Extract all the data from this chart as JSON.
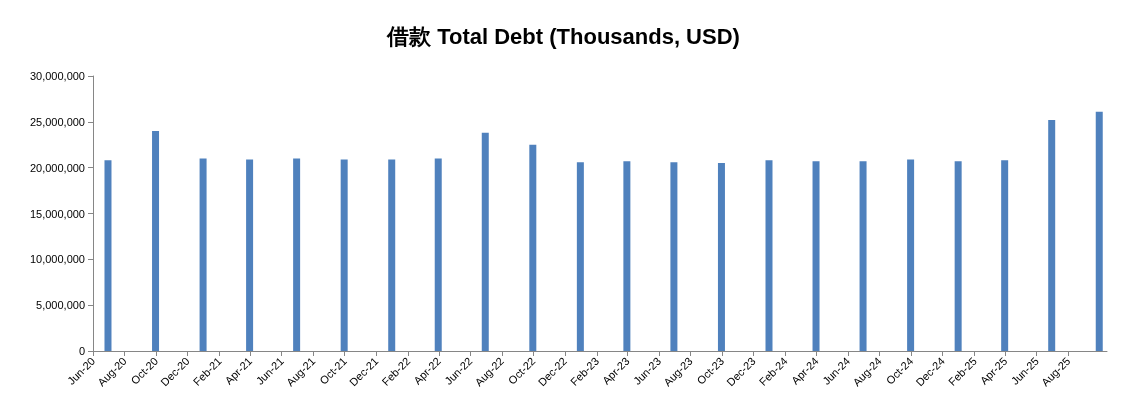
{
  "chart_data": {
    "type": "bar",
    "title": "借款 Total Debt (Thousands, USD)",
    "x": [
      "2020-06-30",
      "2020-09-30",
      "2020-12-31",
      "2021-03-31",
      "2021-06-30",
      "2021-09-30",
      "2021-12-31",
      "2022-03-31",
      "2022-06-30",
      "2022-09-30",
      "2022-12-31",
      "2023-03-31",
      "2023-06-30",
      "2023-09-30",
      "2023-12-31",
      "2024-03-31",
      "2024-06-30",
      "2024-09-30",
      "2024-12-31",
      "2025-03-31",
      "2025-06-30",
      "2025-09-30"
    ],
    "values": [
      20800000,
      24000000,
      21000000,
      20900000,
      21000000,
      20900000,
      20900000,
      21000000,
      23800000,
      22500000,
      20600000,
      20700000,
      20600000,
      20500000,
      20800000,
      20700000,
      20700000,
      20900000,
      20700000,
      20800000,
      25200000,
      26100000
    ],
    "color": "#4f81bd",
    "xlim": [
      "2020-06",
      "2025-10-15"
    ],
    "xticks": [
      {
        "value": "2020-06",
        "label": "Jun-20"
      },
      {
        "value": "2020-08",
        "label": "Aug-20"
      },
      {
        "value": "2020-10",
        "label": "Oct-20"
      },
      {
        "value": "2020-12",
        "label": "Dec-20"
      },
      {
        "value": "2021-02",
        "label": "Feb-21"
      },
      {
        "value": "2021-04",
        "label": "Apr-21"
      },
      {
        "value": "2021-06",
        "label": "Jun-21"
      },
      {
        "value": "2021-08",
        "label": "Aug-21"
      },
      {
        "value": "2021-10",
        "label": "Oct-21"
      },
      {
        "value": "2021-12",
        "label": "Dec-21"
      },
      {
        "value": "2022-02",
        "label": "Feb-22"
      },
      {
        "value": "2022-04",
        "label": "Apr-22"
      },
      {
        "value": "2022-06",
        "label": "Jun-22"
      },
      {
        "value": "2022-08",
        "label": "Aug-22"
      },
      {
        "value": "2022-10",
        "label": "Oct-22"
      },
      {
        "value": "2022-12",
        "label": "Dec-22"
      },
      {
        "value": "2023-02",
        "label": "Feb-23"
      },
      {
        "value": "2023-04",
        "label": "Apr-23"
      },
      {
        "value": "2023-06",
        "label": "Jun-23"
      },
      {
        "value": "2023-08",
        "label": "Aug-23"
      },
      {
        "value": "2023-10",
        "label": "Oct-23"
      },
      {
        "value": "2023-12",
        "label": "Dec-23"
      },
      {
        "value": "2024-02",
        "label": "Feb-24"
      },
      {
        "value": "2024-04",
        "label": "Apr-24"
      },
      {
        "value": "2024-06",
        "label": "Jun-24"
      },
      {
        "value": "2024-08",
        "label": "Aug-24"
      },
      {
        "value": "2024-10",
        "label": "Oct-24"
      },
      {
        "value": "2024-12",
        "label": "Dec-24"
      },
      {
        "value": "2025-02",
        "label": "Feb-25"
      },
      {
        "value": "2025-04",
        "label": "Apr-25"
      },
      {
        "value": "2025-06",
        "label": "Jun-25"
      },
      {
        "value": "2025-08",
        "label": "Aug-25"
      }
    ],
    "ylim": [
      0,
      30000000
    ],
    "yticks": [
      {
        "value": 0,
        "label": "0"
      },
      {
        "value": 5000000,
        "label": "5,000,000"
      },
      {
        "value": 10000000,
        "label": "10,000,000"
      },
      {
        "value": 15000000,
        "label": "15,000,000"
      },
      {
        "value": 20000000,
        "label": "20,000,000"
      },
      {
        "value": 25000000,
        "label": "25,000,000"
      },
      {
        "value": 30000000,
        "label": "30,000,000"
      }
    ],
    "data_labels": false
  }
}
